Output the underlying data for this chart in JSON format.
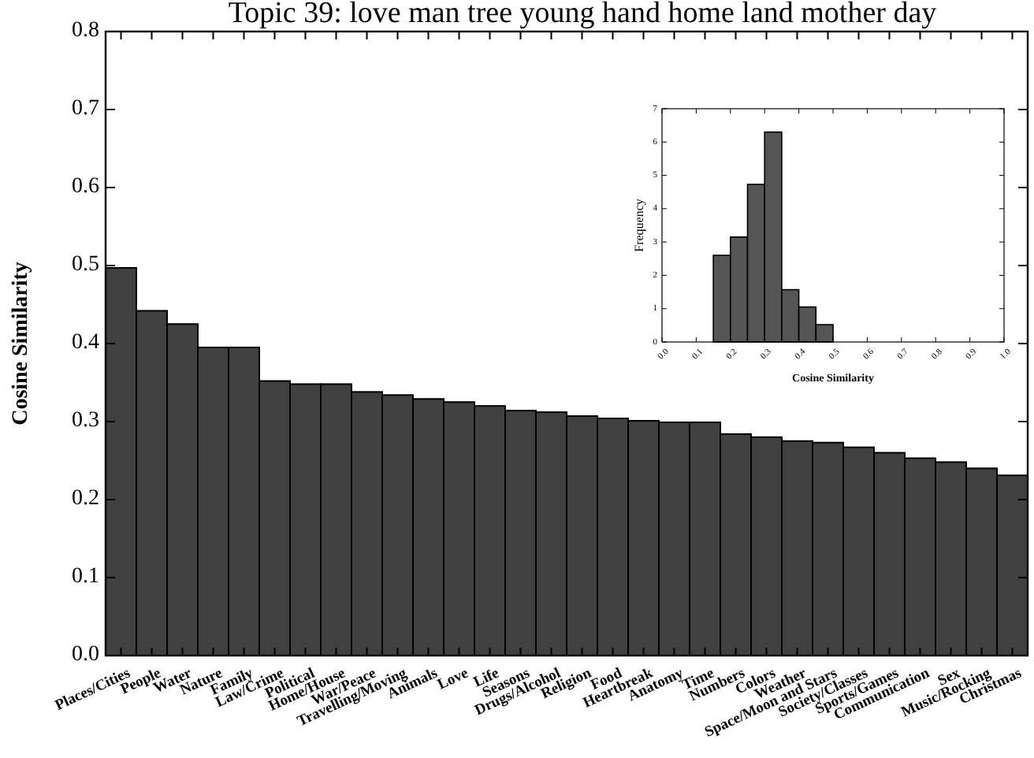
{
  "chart_data": [
    {
      "type": "bar",
      "title": "Topic 39: love man tree young hand home land mother day",
      "ylabel": "Cosine Similarity",
      "categories": [
        "Places/Cities",
        "People",
        "Water",
        "Nature",
        "Family",
        "Law/Crime",
        "Political",
        "Home/House",
        "War/Peace",
        "Travelling/Moving",
        "Animals",
        "Love",
        "Life",
        "Seasons",
        "Drugs/Alcohol",
        "Religion",
        "Food",
        "Heartbreak",
        "Anatomy",
        "Time",
        "Numbers",
        "Colors",
        "Weather",
        "Space/Moon and Stars",
        "Society/Classes",
        "Sports/Games",
        "Communication",
        "Sex",
        "Music/Rocking",
        "Christmas"
      ],
      "values": [
        0.497,
        0.442,
        0.425,
        0.395,
        0.395,
        0.352,
        0.348,
        0.348,
        0.338,
        0.334,
        0.329,
        0.325,
        0.32,
        0.314,
        0.312,
        0.307,
        0.304,
        0.301,
        0.299,
        0.299,
        0.284,
        0.28,
        0.275,
        0.273,
        0.267,
        0.26,
        0.253,
        0.248,
        0.24,
        0.231
      ],
      "color": "#404040",
      "ylim": [
        0,
        0.8
      ],
      "yticks": [
        {
          "value": 0,
          "label": "0.0"
        },
        0.1,
        0.2,
        0.3,
        0.4,
        0.5,
        0.6,
        0.7,
        0.8
      ]
    },
    {
      "type": "histogram",
      "xlabel": "Cosine Similarity",
      "ylabel": "Frequency",
      "bins": [
        0.15,
        0.2,
        0.25,
        0.3,
        0.35,
        0.4,
        0.45,
        0.5
      ],
      "values": [
        2.6,
        3.15,
        4.73,
        6.3,
        1.57,
        1.05,
        0.52
      ],
      "color": "#555555",
      "xlim": [
        0,
        1
      ],
      "xticks": [
        {
          "value": 0,
          "label": "0.0"
        },
        0.1,
        0.2,
        0.3,
        0.4,
        0.5,
        0.6,
        0.7,
        0.8,
        0.9,
        {
          "value": 1,
          "label": "1.0"
        }
      ],
      "ylim": [
        0,
        7
      ],
      "yticks": [
        0,
        1,
        2,
        3,
        4,
        5,
        6,
        7
      ]
    }
  ]
}
